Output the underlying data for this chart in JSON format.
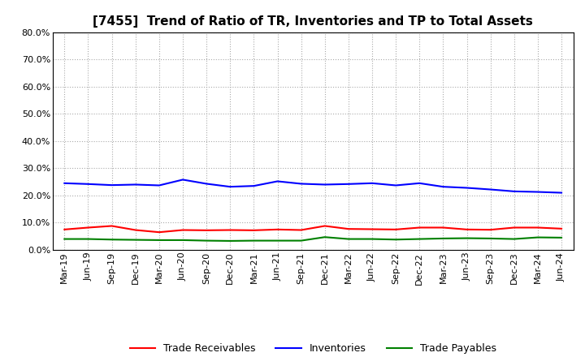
{
  "title": "[7455]  Trend of Ratio of TR, Inventories and TP to Total Assets",
  "labels": [
    "Mar-19",
    "Jun-19",
    "Sep-19",
    "Dec-19",
    "Mar-20",
    "Jun-20",
    "Sep-20",
    "Dec-20",
    "Mar-21",
    "Jun-21",
    "Sep-21",
    "Dec-21",
    "Mar-22",
    "Jun-22",
    "Sep-22",
    "Dec-22",
    "Mar-23",
    "Jun-23",
    "Sep-23",
    "Dec-23",
    "Mar-24",
    "Jun-24"
  ],
  "trade_receivables": [
    0.075,
    0.082,
    0.088,
    0.073,
    0.065,
    0.073,
    0.072,
    0.073,
    0.072,
    0.075,
    0.073,
    0.088,
    0.077,
    0.076,
    0.075,
    0.082,
    0.082,
    0.075,
    0.074,
    0.082,
    0.082,
    0.078
  ],
  "inventories": [
    0.245,
    0.242,
    0.238,
    0.24,
    0.237,
    0.258,
    0.243,
    0.232,
    0.235,
    0.252,
    0.243,
    0.24,
    0.242,
    0.245,
    0.237,
    0.245,
    0.232,
    0.228,
    0.222,
    0.215,
    0.213,
    0.21
  ],
  "trade_payables": [
    0.04,
    0.04,
    0.038,
    0.037,
    0.036,
    0.036,
    0.034,
    0.033,
    0.034,
    0.034,
    0.034,
    0.047,
    0.04,
    0.04,
    0.038,
    0.04,
    0.042,
    0.043,
    0.042,
    0.04,
    0.046,
    0.045
  ],
  "tr_color": "#FF0000",
  "inv_color": "#0000FF",
  "tp_color": "#008000",
  "ylim": [
    0.0,
    0.8
  ],
  "yticks": [
    0.0,
    0.1,
    0.2,
    0.3,
    0.4,
    0.5,
    0.6,
    0.7,
    0.8
  ],
  "background_color": "#FFFFFF",
  "grid_color": "#AAAAAA",
  "legend_tr": "Trade Receivables",
  "legend_inv": "Inventories",
  "legend_tp": "Trade Payables",
  "line_width": 1.5,
  "title_fontsize": 11,
  "tick_fontsize": 8,
  "legend_fontsize": 9
}
